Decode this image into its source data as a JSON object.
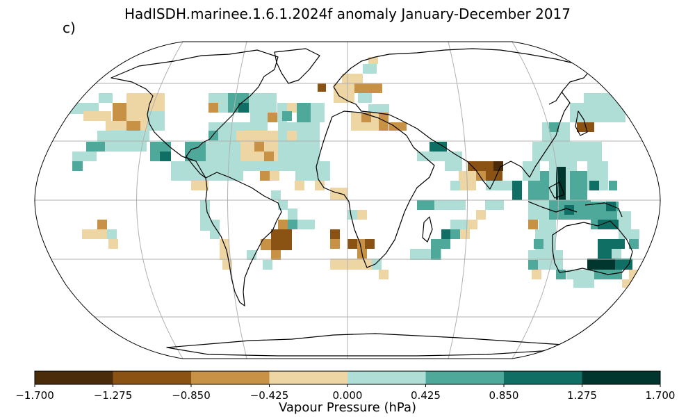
{
  "title": "HadISDH.marinee.1.6.1.2024f anomaly January-December 2017",
  "panel_label": "c)",
  "colorbar": {
    "label": "Vapour Pressure (hPa)",
    "ticks": [
      "−1.700",
      "−1.275",
      "−0.850",
      "−0.425",
      "0.000",
      "0.425",
      "0.850",
      "1.275",
      "1.700"
    ],
    "colors": [
      "#4a2c0a",
      "#8b5313",
      "#c79245",
      "#edd6a3",
      "#aeded6",
      "#4fa99b",
      "#0f6f64",
      "#00362e"
    ]
  },
  "map": {
    "projection": "Robinson",
    "graticule_color": "#b0b0b0",
    "coast_color": "#000000"
  }
}
